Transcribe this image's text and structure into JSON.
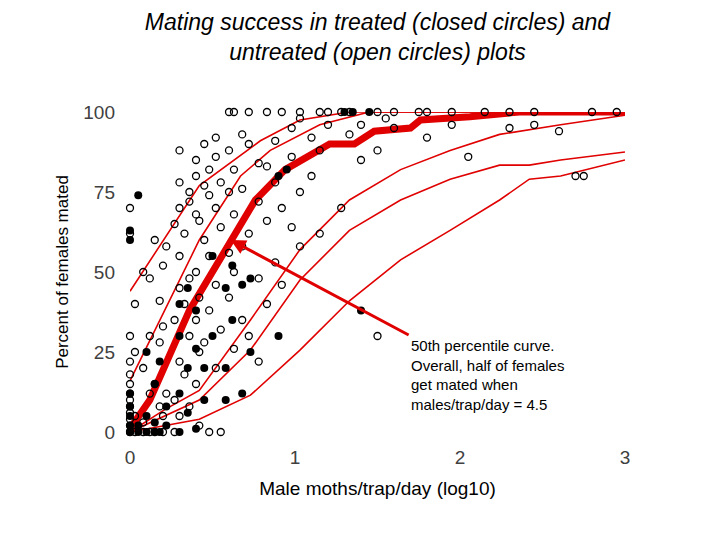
{
  "chart_data": {
    "type": "scatter",
    "title": "Mating success in treated (closed circles) and\nuntreated (open circles) plots",
    "x_label": "Male moths/trap/day (log10)",
    "y_label": "Percent of females mated",
    "xlim": [
      0,
      3
    ],
    "ylim": [
      0,
      100
    ],
    "xticks": [
      0,
      1,
      2,
      3
    ],
    "yticks": [
      0,
      25,
      50,
      75,
      100
    ],
    "grid": false,
    "annotations": [
      {
        "lines": [
          "50th percentile curve.",
          "Overall, half of females",
          "get mated when",
          "males/trap/day = 4.5"
        ],
        "color": "#e00000"
      }
    ],
    "series": [
      {
        "type": "line",
        "color": "#e00000",
        "line_style": "solid",
        "x": [
          0,
          0.42,
          0.79,
          1.03,
          1.33,
          3
        ],
        "values": [
          44,
          77,
          91,
          97.5,
          100,
          100
        ]
      },
      {
        "type": "line",
        "color": "#e00000",
        "line_style": "solid",
        "x": [
          0,
          0.24,
          0.42,
          0.67,
          0.85,
          1.15,
          1.45,
          3
        ],
        "values": [
          16,
          41,
          60,
          80,
          88,
          96,
          100,
          100
        ]
      },
      {
        "type": "line",
        "color": "#e00000",
        "line_style": "solid",
        "x": [
          0,
          0.21,
          0.42,
          0.73,
          1.03,
          1.33,
          1.64,
          1.94,
          2.24,
          2.36,
          2.61,
          3
        ],
        "values": [
          0,
          7,
          13,
          35,
          57,
          72.5,
          82,
          88,
          93,
          94,
          96,
          99
        ]
      },
      {
        "type": "line",
        "color": "#e00000",
        "line_style": "solid",
        "x": [
          0,
          0.42,
          0.73,
          1.03,
          1.33,
          1.64,
          1.94,
          2.24,
          2.42,
          2.61,
          3
        ],
        "values": [
          0,
          10,
          25.6,
          47.5,
          63,
          72.5,
          79,
          83.4,
          83.4,
          85,
          87.5
        ]
      },
      {
        "type": "line",
        "color": "#e00000",
        "line_style": "solid",
        "x": [
          0,
          0.42,
          0.73,
          1.03,
          1.33,
          1.64,
          1.94,
          2.24,
          2.42,
          2.61,
          3
        ],
        "values": [
          0,
          4,
          11.5,
          25.6,
          41,
          53.8,
          63,
          72.5,
          79,
          80,
          85
        ]
      },
      {
        "type": "line",
        "color": "#e00000",
        "line_style": "thick",
        "x": [
          0,
          0.12,
          0.36,
          0.61,
          0.76,
          0.94,
          1.21,
          1.36,
          1.48,
          1.7,
          1.76,
          2.06,
          2.36,
          3
        ],
        "values": [
          1,
          10,
          38,
          60,
          72.5,
          82,
          90,
          90,
          94,
          95,
          97.5,
          98.5,
          100,
          100
        ]
      },
      {
        "type": "scatter",
        "color": "#000000",
        "marker": "open",
        "x": [
          0,
          0,
          0,
          0,
          0,
          0,
          0,
          0,
          0,
          0,
          0,
          0,
          0,
          0.03,
          0.03,
          0.03,
          0.03,
          0.08,
          0.08,
          0.08,
          0.08,
          0.12,
          0.12,
          0.12,
          0.12,
          0.15,
          0.15,
          0.15,
          0.18,
          0.18,
          0.18,
          0.2,
          0.2,
          0.2,
          0.2,
          0.22,
          0.22,
          0.27,
          0.27,
          0.27,
          0.27,
          0.3,
          0.3,
          0.3,
          0.3,
          0.3,
          0.3,
          0.3,
          0.33,
          0.33,
          0.33,
          0.36,
          0.36,
          0.36,
          0.36,
          0.36,
          0.4,
          0.4,
          0.4,
          0.4,
          0.4,
          0.4,
          0.42,
          0.42,
          0.42,
          0.42,
          0.45,
          0.45,
          0.45,
          0.45,
          0.48,
          0.48,
          0.48,
          0.48,
          0.48,
          0.52,
          0.52,
          0.52,
          0.52,
          0.52,
          0.55,
          0.55,
          0.55,
          0.55,
          0.6,
          0.6,
          0.6,
          0.6,
          0.6,
          0.63,
          0.63,
          0.63,
          0.63,
          0.63,
          0.68,
          0.68,
          0.68,
          0.68,
          0.72,
          0.72,
          0.72,
          0.72,
          0.78,
          0.78,
          0.78,
          0.78,
          0.83,
          0.83,
          0.83,
          0.83,
          0.88,
          0.88,
          0.88,
          0.92,
          0.92,
          0.92,
          0.98,
          0.98,
          0.98,
          1.03,
          1.03,
          1.03,
          1.03,
          1.1,
          1.1,
          1.15,
          1.15,
          1.15,
          1.2,
          1.2,
          1.28,
          1.28,
          1.33,
          1.33,
          1.4,
          1.4,
          1.5,
          1.5,
          1.5,
          1.55,
          1.6,
          1.6,
          1.75,
          1.8,
          1.8,
          1.95,
          1.95,
          2.05,
          2.15,
          2.3,
          2.3,
          2.45,
          2.45,
          2.6,
          2.7,
          2.75,
          2.8,
          2.95
        ],
        "values": [
          70,
          62,
          30,
          22,
          18,
          15,
          12,
          10,
          8,
          6,
          4,
          2,
          0,
          40,
          25,
          5,
          0,
          50,
          20,
          3,
          0,
          48,
          30,
          12,
          0,
          60,
          15,
          0,
          41,
          28,
          8,
          52,
          33,
          5,
          0,
          58,
          12,
          65,
          35,
          10,
          0,
          88,
          78,
          70,
          55,
          45,
          22,
          5,
          62,
          40,
          18,
          75,
          72,
          48,
          30,
          8,
          85,
          80,
          68,
          50,
          35,
          15,
          66,
          42,
          25,
          2,
          90,
          77,
          60,
          28,
          82,
          74,
          55,
          38,
          0,
          92,
          86,
          70,
          46,
          20,
          78,
          64,
          32,
          0,
          100,
          88,
          75,
          56,
          42,
          100,
          82,
          68,
          50,
          26,
          93,
          76,
          58,
          35,
          100,
          90,
          62,
          30,
          84,
          72,
          48,
          22,
          100,
          83,
          66,
          40,
          91,
          78,
          53,
          100,
          70,
          46,
          95,
          86,
          64,
          100,
          98,
          75,
          58,
          92,
          80,
          100,
          88,
          62,
          100,
          96,
          100,
          70,
          100,
          93,
          96,
          85,
          100,
          88,
          30,
          98,
          100,
          95,
          100,
          100,
          92,
          100,
          96,
          86,
          100,
          100,
          95,
          100,
          96,
          94,
          80,
          80,
          100,
          100
        ]
      },
      {
        "type": "scatter",
        "color": "#000000",
        "marker": "filled",
        "x": [
          0,
          0,
          0,
          0,
          0,
          0,
          0,
          0,
          0.05,
          0.05,
          0.05,
          0.1,
          0.1,
          0.1,
          0.15,
          0.15,
          0.15,
          0.18,
          0.18,
          0.22,
          0.22,
          0.3,
          0.3,
          0.3,
          0.3,
          0.35,
          0.35,
          0.35,
          0.4,
          0.4,
          0.4,
          0.45,
          0.45,
          0.5,
          0.5,
          0.58,
          0.58,
          0.58,
          0.62,
          0.62,
          0.68,
          0.68,
          0.73,
          0.73,
          0.9,
          0.9,
          0.95,
          1.3,
          1.35,
          1.4,
          1.45
        ],
        "values": [
          63,
          60,
          12,
          8,
          5,
          2,
          0,
          0,
          74,
          2,
          0,
          25,
          5,
          0,
          15,
          3,
          0,
          22,
          0,
          8,
          2,
          40,
          30,
          12,
          0,
          45,
          20,
          6,
          38,
          26,
          1,
          20,
          10,
          55,
          30,
          45,
          20,
          10,
          52,
          35,
          46,
          12,
          48,
          25,
          80,
          30,
          82,
          100,
          100,
          38,
          100
        ]
      }
    ]
  }
}
